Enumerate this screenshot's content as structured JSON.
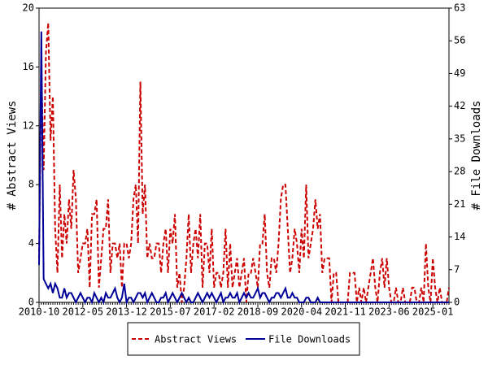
{
  "chart_data": {
    "type": "line",
    "x": [
      "2010-10",
      "2010-11",
      "2010-12",
      "2011-01",
      "2011-02",
      "2011-03",
      "2011-04",
      "2011-05",
      "2011-06",
      "2011-07",
      "2011-08",
      "2011-09",
      "2011-10",
      "2011-11",
      "2011-12",
      "2012-01",
      "2012-02",
      "2012-03",
      "2012-04",
      "2012-05",
      "2012-06",
      "2012-07",
      "2012-08",
      "2012-09",
      "2012-10",
      "2012-11",
      "2012-12",
      "2013-01",
      "2013-02",
      "2013-03",
      "2013-04",
      "2013-05",
      "2013-06",
      "2013-07",
      "2013-08",
      "2013-09",
      "2013-10",
      "2013-11",
      "2013-12",
      "2014-01",
      "2014-02",
      "2014-03",
      "2014-04",
      "2014-05",
      "2014-06",
      "2014-07",
      "2014-08",
      "2014-09",
      "2014-10",
      "2014-11",
      "2014-12",
      "2015-01",
      "2015-02",
      "2015-03",
      "2015-04",
      "2015-05",
      "2015-06",
      "2015-07",
      "2015-08",
      "2015-09",
      "2015-10",
      "2015-11",
      "2015-12",
      "2016-01",
      "2016-02",
      "2016-03",
      "2016-04",
      "2016-05",
      "2016-06",
      "2016-07",
      "2016-08",
      "2016-09",
      "2016-10",
      "2016-11",
      "2016-12",
      "2017-01",
      "2017-02",
      "2017-03",
      "2017-04",
      "2017-05",
      "2017-06",
      "2017-07",
      "2017-08",
      "2017-09",
      "2017-10",
      "2017-11",
      "2017-12",
      "2018-01",
      "2018-02",
      "2018-03",
      "2018-04",
      "2018-05",
      "2018-06",
      "2018-07",
      "2018-08",
      "2018-09",
      "2018-10",
      "2018-11",
      "2018-12",
      "2019-01",
      "2019-02",
      "2019-03",
      "2019-04",
      "2019-05",
      "2019-06",
      "2019-07",
      "2019-08",
      "2019-09",
      "2019-10",
      "2019-11",
      "2019-12",
      "2020-01",
      "2020-02",
      "2020-03",
      "2020-04",
      "2020-05",
      "2020-06",
      "2020-07",
      "2020-08",
      "2020-09",
      "2020-10",
      "2020-11",
      "2020-12",
      "2021-01",
      "2021-02",
      "2021-03",
      "2021-04",
      "2021-05",
      "2021-06",
      "2021-07",
      "2021-08",
      "2021-09",
      "2021-10",
      "2021-11",
      "2021-12",
      "2022-01",
      "2022-02",
      "2022-03",
      "2022-04",
      "2022-05",
      "2022-06",
      "2022-07",
      "2022-08",
      "2022-09",
      "2022-10",
      "2022-11",
      "2022-12",
      "2023-01",
      "2023-02",
      "2023-03",
      "2023-04",
      "2023-05",
      "2023-06",
      "2023-07",
      "2023-08",
      "2023-09",
      "2023-10",
      "2023-11",
      "2023-12",
      "2024-01",
      "2024-02",
      "2024-03",
      "2024-04",
      "2024-05",
      "2024-06",
      "2024-07",
      "2024-08",
      "2024-09",
      "2024-10",
      "2024-11",
      "2024-12",
      "2025-01",
      "2025-02",
      "2025-03",
      "2025-04",
      "2025-05",
      "2025-06",
      "2025-07",
      "2025-08"
    ],
    "xticks": [
      "2010-10",
      "2012-05",
      "2013-12",
      "2015-07",
      "2017-02",
      "2018-09",
      "2020-04",
      "2021-11",
      "2023-06",
      "2025-01"
    ],
    "ylabel": "# Abstract Views",
    "y2label": "# File Downloads",
    "ylim": [
      0,
      20
    ],
    "yticks": [
      0,
      4,
      8,
      12,
      16,
      20
    ],
    "y2lim": [
      0,
      63
    ],
    "y2ticks": [
      0,
      7,
      14,
      21,
      28,
      35,
      42,
      49,
      56,
      63
    ],
    "legend": "bottom",
    "series": [
      {
        "name": "Abstract Views",
        "color": "#cc0000",
        "dashed": true,
        "values": [
          3,
          16,
          9,
          17,
          19,
          11,
          14,
          5,
          2,
          8,
          3,
          6,
          4,
          7,
          5,
          9,
          7,
          2,
          3,
          4,
          4,
          5,
          1,
          6,
          6,
          7,
          1,
          3,
          5,
          5,
          7,
          2,
          4,
          4,
          3,
          4,
          1,
          4,
          4,
          3,
          4,
          7,
          8,
          4,
          15,
          6,
          8,
          3,
          4,
          3,
          3,
          4,
          4,
          2,
          4,
          5,
          2,
          5,
          4,
          6,
          1,
          2,
          0,
          1,
          3,
          6,
          2,
          4,
          5,
          3,
          6,
          1,
          4,
          4,
          2,
          5,
          1,
          2,
          2,
          1,
          2,
          5,
          1,
          4,
          1,
          2,
          3,
          1,
          2,
          3,
          0,
          2,
          2,
          3,
          2,
          1,
          4,
          4,
          6,
          2,
          1,
          3,
          3,
          2,
          4,
          7,
          8,
          8,
          5,
          2,
          3,
          5,
          4,
          2,
          5,
          3,
          8,
          3,
          4,
          5,
          7,
          5,
          6,
          2,
          3,
          3,
          3,
          0,
          2,
          2,
          0,
          0,
          0,
          0,
          0,
          2,
          2,
          2,
          0,
          1,
          0,
          1,
          0,
          1,
          2,
          3,
          1,
          0,
          2,
          3,
          1,
          3,
          1,
          0,
          0,
          1,
          0,
          0,
          1,
          0,
          0,
          0,
          1,
          1,
          0,
          0,
          1,
          0,
          4,
          1,
          0,
          3,
          1,
          0,
          1,
          0,
          0,
          0,
          1
        ]
      },
      {
        "name": "File Downloads",
        "color": "#000099",
        "dashed": false,
        "axis": "y2",
        "values": [
          8,
          58,
          5,
          4,
          3,
          4,
          2,
          4,
          3,
          1,
          1,
          3,
          1,
          2,
          2,
          1,
          0,
          1,
          2,
          1,
          0,
          1,
          1,
          0,
          2,
          1,
          0,
          1,
          0,
          2,
          1,
          1,
          2,
          3,
          1,
          0,
          1,
          4,
          0,
          1,
          1,
          0,
          1,
          2,
          2,
          1,
          2,
          0,
          1,
          2,
          1,
          0,
          0,
          1,
          1,
          2,
          0,
          1,
          2,
          1,
          0,
          1,
          2,
          1,
          0,
          1,
          0,
          0,
          1,
          2,
          1,
          0,
          1,
          2,
          1,
          2,
          1,
          0,
          1,
          2,
          0,
          1,
          1,
          2,
          1,
          1,
          2,
          0,
          1,
          2,
          1,
          2,
          1,
          1,
          2,
          3,
          1,
          2,
          2,
          1,
          0,
          1,
          1,
          2,
          2,
          1,
          2,
          3,
          1,
          1,
          2,
          1,
          1,
          0,
          0,
          0,
          1,
          1,
          0,
          0,
          0,
          1,
          0,
          0,
          0,
          0,
          0,
          0,
          0,
          0,
          0,
          0,
          0,
          0,
          0,
          0,
          0,
          0,
          0,
          0,
          0,
          0,
          0,
          0,
          0,
          0,
          0,
          0,
          0,
          0,
          0,
          0,
          0,
          0,
          0,
          0,
          0,
          0,
          0,
          0,
          0,
          0,
          0,
          0,
          0,
          0,
          0,
          0,
          0,
          0,
          0,
          0,
          0,
          0,
          0,
          0,
          0,
          0,
          0
        ]
      }
    ]
  }
}
